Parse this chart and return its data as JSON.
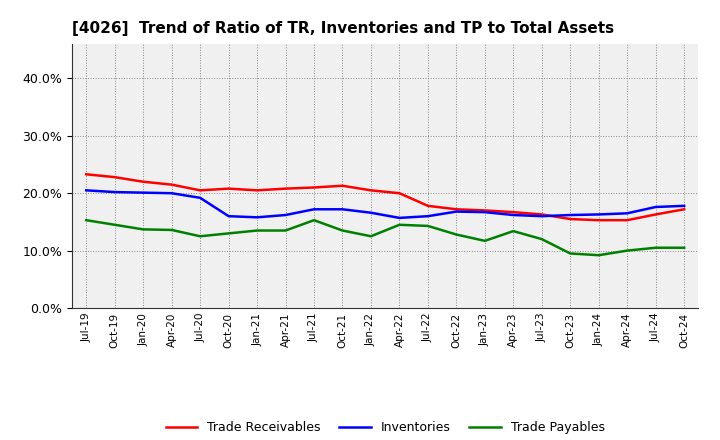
{
  "title": "[4026]  Trend of Ratio of TR, Inventories and TP to Total Assets",
  "x_labels": [
    "Jul-19",
    "Oct-19",
    "Jan-20",
    "Apr-20",
    "Jul-20",
    "Oct-20",
    "Jan-21",
    "Apr-21",
    "Jul-21",
    "Oct-21",
    "Jan-22",
    "Apr-22",
    "Jul-22",
    "Oct-22",
    "Jan-23",
    "Apr-23",
    "Jul-23",
    "Oct-23",
    "Jan-24",
    "Apr-24",
    "Jul-24",
    "Oct-24"
  ],
  "trade_receivables": [
    0.233,
    0.228,
    0.22,
    0.215,
    0.205,
    0.208,
    0.205,
    0.208,
    0.21,
    0.213,
    0.205,
    0.2,
    0.178,
    0.172,
    0.17,
    0.167,
    0.163,
    0.155,
    0.153,
    0.153,
    0.163,
    0.172
  ],
  "inventories": [
    0.205,
    0.202,
    0.201,
    0.2,
    0.192,
    0.16,
    0.158,
    0.162,
    0.172,
    0.172,
    0.166,
    0.157,
    0.16,
    0.168,
    0.167,
    0.162,
    0.16,
    0.162,
    0.163,
    0.165,
    0.176,
    0.178
  ],
  "trade_payables": [
    0.153,
    0.145,
    0.137,
    0.136,
    0.125,
    0.13,
    0.135,
    0.135,
    0.153,
    0.135,
    0.125,
    0.145,
    0.143,
    0.128,
    0.117,
    0.134,
    0.12,
    0.095,
    0.092,
    0.1,
    0.105,
    0.105
  ],
  "ylim": [
    0.0,
    0.46
  ],
  "yticks": [
    0.0,
    0.1,
    0.2,
    0.3,
    0.4
  ],
  "line_colors": {
    "trade_receivables": "#ff0000",
    "inventories": "#0000ff",
    "trade_payables": "#008000"
  },
  "legend_labels": [
    "Trade Receivables",
    "Inventories",
    "Trade Payables"
  ],
  "background_color": "#ffffff",
  "plot_bg_color": "#f0f0f0",
  "grid_color_dotted": "#888888",
  "grid_color_dashed": "#888888"
}
